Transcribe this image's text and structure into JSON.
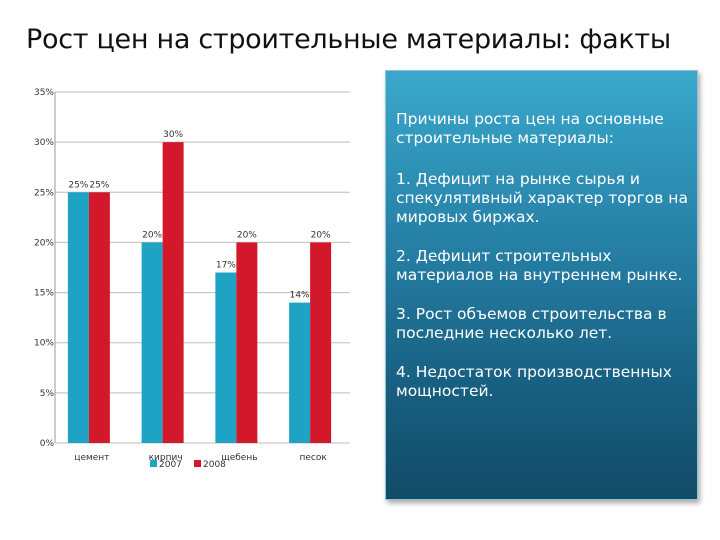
{
  "title": "Рост цен на строительные материалы: факты",
  "chart_data": {
    "type": "bar",
    "categories": [
      "цемент",
      "кирпич",
      "щебень",
      "песок"
    ],
    "category_labels_note": "",
    "series": [
      {
        "name": "2007",
        "values": [
          25,
          20,
          17,
          14
        ],
        "labels": [
          "25%",
          "20%",
          "17%",
          "14%"
        ],
        "color": "#1fa3c4"
      },
      {
        "name": "2008",
        "values": [
          25,
          30,
          20,
          20
        ],
        "labels": [
          "25%",
          "30%",
          "20%",
          "20%"
        ],
        "color": "#d3182b"
      }
    ],
    "ylim": [
      0,
      35
    ],
    "yticks": [
      0,
      5,
      10,
      15,
      20,
      25,
      30,
      35
    ],
    "ytick_labels": [
      "0%",
      "5%",
      "10%",
      "15%",
      "20%",
      "25%",
      "30%",
      "35%"
    ],
    "grid": true,
    "legend_placement": "bottom",
    "xlabel": "",
    "ylabel": ""
  },
  "panel": {
    "heading": "Причины роста цен на основные строительные материалы:",
    "items": [
      "1. Дефицит на рынке сырья и спекулятивный характер торгов на мировых биржах.",
      "2. Дефицит строительных материалов на внутреннем рынке.",
      "3. Рост объемов строительства в последние несколько лет.",
      "4. Недостаток производственных мощностей."
    ]
  }
}
